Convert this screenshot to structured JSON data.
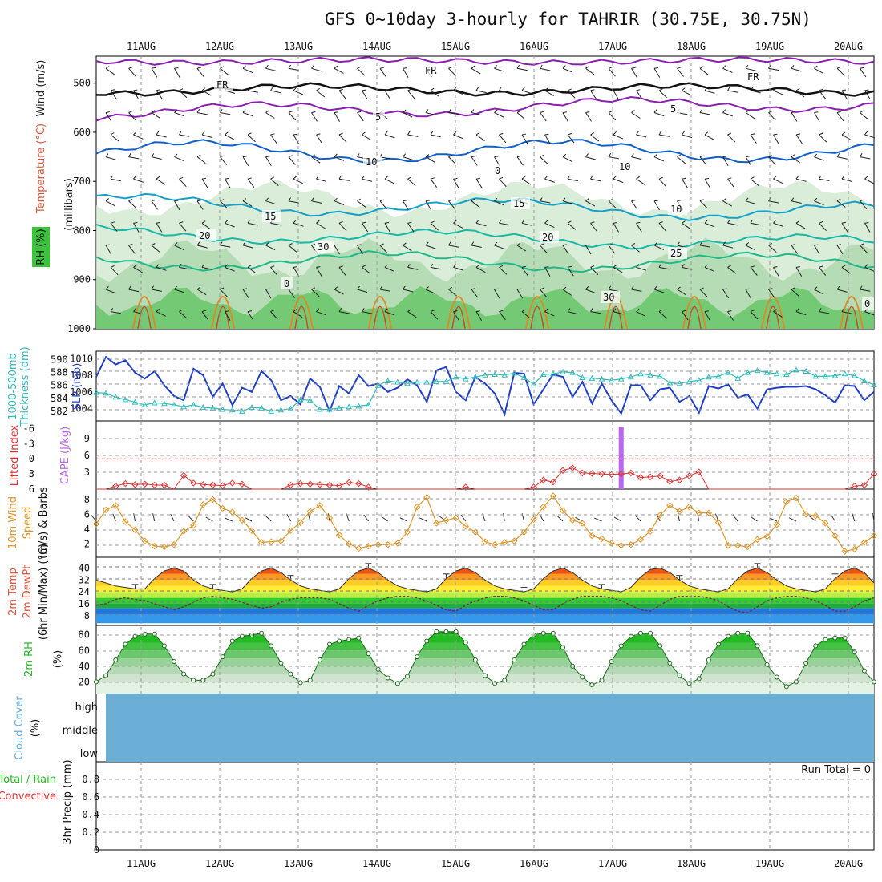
{
  "title": "GFS 0~10day 3-hourly for TAHRIR (30.75E, 30.75N)",
  "dates": [
    "11AUG",
    "12AUG",
    "13AUG",
    "14AUG",
    "15AUG",
    "16AUG",
    "17AUG",
    "18AUG",
    "19AUG",
    "20AUG"
  ],
  "run_total": "Run Total = 0",
  "colors": {
    "slp": "#1f3fc8",
    "thickness": "#33bbbb",
    "lifted": "#e03030",
    "cape": "#bb66ee",
    "wind": "#e0962a",
    "rh_green": "#22bb22",
    "temp_purple": "#8a1fb0",
    "temp_blue": "#1060cc",
    "temp_cyan": "#14a0c8",
    "temp_teal": "#18b8a8",
    "temp_orange": "#e08820",
    "cloud": "#6baed6"
  },
  "panels": {
    "profile": {
      "label_wind": "Wind (m/s)",
      "label_temp": "Temperature (°C)",
      "label_rh": "RH (%)",
      "label_axis": "(millibars)",
      "ylim": [
        1000,
        450
      ],
      "ticks": [
        "500",
        "600",
        "700",
        "800",
        "900",
        "1000"
      ],
      "contour_labels": [
        "FR",
        "FR",
        "FR",
        "5",
        "5",
        "10",
        "15",
        "15",
        "20",
        "20",
        "25",
        "0",
        "0",
        "0",
        "10",
        "10",
        "30",
        "30"
      ]
    },
    "slp": {
      "label_thick": "1000-500mb",
      "label_thick2": "Thickness (dm)",
      "label_slp": "SLP (mb)",
      "ticks_left": [
        "590",
        "588",
        "586",
        "584",
        "582"
      ],
      "ticks_right": [
        "1010",
        "1008",
        "1006",
        "1004"
      ]
    },
    "cape": {
      "label_li": "Lifted Index",
      "label_cape": "CAPE (J/kg)",
      "ticks_left": [
        "-6",
        "-3",
        "0",
        "3",
        "6"
      ],
      "ticks_right": [
        "9",
        "6",
        "3"
      ]
    },
    "wind": {
      "label1": "10m Wind",
      "label2": "Speed",
      "label3": "(m/s) & Barbs",
      "ticks": [
        "8",
        "6",
        "4",
        "2"
      ]
    },
    "temp": {
      "label1": "2m Temp",
      "label2": "2m DewPt",
      "label3": "(6hr Min/Max) (°C)",
      "ticks": [
        "40",
        "32",
        "24",
        "16",
        "8"
      ]
    },
    "rh": {
      "label1": "2m RH",
      "label2": "(%)",
      "ticks": [
        "80",
        "60",
        "40",
        "20"
      ]
    },
    "cloud": {
      "label": "Cloud Cover",
      "unit": "(%)",
      "levels": [
        "high",
        "middle",
        "low"
      ]
    },
    "precip": {
      "label_total": "Total / Rain",
      "label_conv": "Convective",
      "label_axis": "3hr Precip (mm)",
      "ticks": [
        "0.8",
        "0.6",
        "0.4",
        "0.2",
        "0"
      ]
    }
  },
  "chart_data": [
    {
      "type": "line",
      "title": "1000-500mb Thickness (dm) / SLP (mb)",
      "series": [
        {
          "name": "SLP (mb)",
          "values": [
            1007.8,
            1010.2,
            1009.3,
            1009.8,
            1008.3,
            1007.6,
            1008.5,
            1006.8,
            1005.5,
            1005.0,
            1008.8,
            1008.0,
            1005.4,
            1007.0,
            1004.4,
            1006.5,
            1006.0,
            1008.5,
            1007.4,
            1005.0,
            1005.5,
            1004.5,
            1007.6,
            1006.6,
            1003.7,
            1006.7,
            1005.8,
            1008.0,
            1006.7,
            1007.0,
            1006.0,
            1006.5,
            1007.5,
            1006.8,
            1004.8,
            1008.6,
            1009.0,
            1006.0,
            1005.0,
            1007.8,
            1007.0,
            1005.8,
            1003.3,
            1008.3,
            1008.2,
            1004.5,
            1006.3,
            1008.1,
            1007.8,
            1005.4,
            1007.2,
            1004.6,
            1007.0,
            1005.0,
            1003.4,
            1006.8,
            1006.8,
            1005.0,
            1006.3,
            1006.5,
            1004.8,
            1005.5,
            1003.5,
            1006.7,
            1006.4,
            1006.9,
            1005.3,
            1005.7,
            1004.0,
            1006.3,
            1006.5,
            1006.6,
            1006.6,
            1006.7,
            1006.3,
            1005.6,
            1004.7,
            1006.8,
            1006.7,
            1005.0,
            1006.0
          ]
        },
        {
          "name": "Thickness (dm)",
          "values": [
            584.9,
            584.8,
            584.2,
            583.8,
            583.4,
            583.0,
            583.3,
            583.2,
            583.0,
            582.7,
            583.0,
            582.6,
            582.5,
            582.3,
            582.2,
            582.0,
            582.6,
            582.5,
            582.0,
            582.2,
            582.4,
            583.8,
            583.7,
            582.3,
            582.3,
            582.5,
            582.7,
            582.8,
            583.0,
            586.0,
            586.7,
            586.5,
            586.3,
            586.5,
            586.5,
            586.6,
            586.6,
            587.3,
            587.0,
            587.3,
            587.6,
            587.7,
            587.6,
            587.9,
            587.2,
            586.2,
            587.7,
            587.8,
            588.1,
            588.0,
            587.2,
            587.1,
            587.0,
            586.8,
            587.0,
            587.3,
            587.8,
            587.6,
            587.4,
            586.4,
            586.3,
            586.6,
            586.8,
            587.3,
            587.4,
            588.0,
            587.1,
            588.0,
            588.3,
            588.0,
            587.8,
            587.7,
            588.4,
            588.2,
            587.4,
            587.4,
            587.5,
            587.8,
            587.5,
            586.7,
            586.1
          ]
        }
      ]
    },
    {
      "type": "line",
      "title": "Lifted Index / CAPE (J/kg)",
      "series": [
        {
          "name": "Lifted Index",
          "values": [
            6,
            6,
            5.4,
            4.9,
            5.1,
            5.0,
            5.2,
            5.2,
            6,
            3.3,
            4.8,
            5.1,
            5.2,
            5.3,
            4.8,
            5.0,
            6,
            6,
            6,
            6,
            5.2,
            4.9,
            5.0,
            5.1,
            5.2,
            5.3,
            4.7,
            4.9,
            5.6,
            6,
            6,
            6,
            6,
            6,
            6,
            6,
            6,
            6,
            5.6,
            6,
            6,
            6,
            6,
            6,
            6,
            5.6,
            4.2,
            4.6,
            2.3,
            1.8,
            2.8,
            2.9,
            3.0,
            3.1,
            3.0,
            2.8,
            3.7,
            3.6,
            3.4,
            4.5,
            4.2,
            3.4,
            2.6,
            6,
            6,
            6,
            6,
            6,
            6,
            6,
            6,
            6,
            6,
            6,
            6,
            6,
            6,
            6,
            5.4,
            5.2,
            3.0
          ]
        },
        {
          "name": "CAPE (J/kg)",
          "values": [
            0,
            0,
            0,
            0,
            0,
            0,
            0,
            0,
            0,
            0,
            0,
            0,
            0,
            0,
            0,
            0,
            0,
            0,
            0,
            0,
            0,
            0,
            0,
            0,
            0,
            0,
            0,
            0,
            0,
            0,
            0,
            0,
            0,
            0,
            0,
            0,
            0,
            0,
            0,
            0,
            0,
            0,
            0,
            0,
            0,
            0,
            0,
            0,
            0,
            0,
            0,
            0,
            0,
            0,
            12,
            0,
            0,
            0,
            0,
            0,
            0,
            0,
            0,
            0,
            0,
            0,
            0,
            0,
            0,
            0,
            0,
            0,
            0,
            0,
            0,
            0,
            0,
            0,
            0,
            0,
            0
          ]
        }
      ]
    },
    {
      "type": "line",
      "title": "10m Wind Speed (m/s)",
      "series": [
        {
          "name": "Speed (m/s)",
          "values": [
            4.7,
            6.6,
            7.2,
            5.0,
            3.9,
            2.4,
            1.7,
            1.6,
            1.9,
            3.7,
            4.5,
            7.3,
            8.0,
            6.8,
            6.3,
            5.2,
            3.8,
            2.2,
            2.3,
            2.4,
            3.8,
            4.9,
            6.4,
            7.2,
            5.5,
            3.2,
            2.0,
            1.4,
            1.7,
            1.9,
            1.9,
            2.1,
            3.6,
            7.0,
            8.3,
            4.8,
            5.2,
            5.5,
            4.4,
            3.6,
            2.3,
            1.9,
            2.2,
            2.4,
            3.6,
            5.3,
            7.0,
            8.5,
            6.5,
            5.2,
            4.8,
            3.1,
            2.7,
            2.1,
            1.8,
            1.9,
            2.6,
            3.7,
            5.9,
            7.2,
            6.4,
            7.0,
            6.2,
            6.2,
            4.9,
            1.8,
            1.8,
            1.6,
            2.6,
            3.0,
            4.6,
            7.7,
            8.2,
            6.0,
            5.8,
            4.8,
            3.1,
            1.0,
            1.3,
            2.2,
            3.1
          ]
        }
      ]
    },
    {
      "type": "area",
      "title": "2m Temp / 2m DewPt (°C)",
      "series": [
        {
          "name": "2m Temp",
          "values": [
            32,
            30,
            28,
            27,
            26,
            26,
            33,
            38,
            40,
            38,
            32,
            28,
            26,
            25,
            24,
            26,
            33,
            38,
            40,
            37,
            32,
            28,
            26,
            25,
            24,
            26,
            33,
            38,
            40,
            37,
            32,
            28,
            26,
            25,
            24,
            26,
            33,
            38,
            40,
            37,
            32,
            28,
            26,
            25,
            24,
            26,
            33,
            38,
            40,
            37,
            32,
            28,
            26,
            25,
            24,
            27,
            34,
            39,
            40,
            37,
            32,
            28,
            26,
            25,
            24,
            26,
            33,
            38,
            40,
            37,
            32,
            28,
            26,
            25,
            24,
            26,
            33,
            38,
            40,
            37,
            30
          ]
        },
        {
          "name": "2m DewPt",
          "values": [
            15,
            16,
            19,
            20,
            19,
            18,
            16,
            14,
            12,
            14,
            17,
            20,
            21,
            20,
            19,
            17,
            15,
            13,
            14,
            17,
            19,
            20,
            20,
            20,
            19,
            16,
            13,
            11,
            15,
            18,
            20,
            21,
            21,
            20,
            18,
            15,
            12,
            11,
            15,
            18,
            20,
            21,
            21,
            20,
            18,
            15,
            12,
            12,
            16,
            19,
            21,
            21,
            21,
            20,
            18,
            15,
            12,
            11,
            15,
            19,
            21,
            21,
            21,
            20,
            18,
            14,
            11,
            10,
            14,
            18,
            20,
            21,
            21,
            20,
            18,
            15,
            11,
            11,
            14,
            18,
            20
          ]
        }
      ]
    },
    {
      "type": "area",
      "title": "2m RH (%)",
      "series": [
        {
          "name": "2m RH",
          "values": [
            20,
            28,
            48,
            68,
            78,
            81,
            81,
            66,
            46,
            30,
            22,
            22,
            30,
            52,
            72,
            78,
            80,
            82,
            66,
            44,
            30,
            19,
            22,
            48,
            68,
            72,
            74,
            76,
            56,
            36,
            25,
            18,
            27,
            52,
            72,
            84,
            84,
            84,
            70,
            48,
            28,
            18,
            22,
            48,
            68,
            80,
            82,
            82,
            64,
            40,
            26,
            16,
            22,
            46,
            66,
            78,
            82,
            82,
            66,
            44,
            28,
            18,
            24,
            48,
            68,
            78,
            82,
            82,
            66,
            42,
            26,
            14,
            20,
            44,
            66,
            74,
            76,
            76,
            58,
            34,
            20
          ]
        }
      ]
    },
    {
      "type": "bar",
      "title": "3hr Precip (mm)",
      "series": [
        {
          "name": "Total / Rain",
          "values": [
            0,
            0,
            0,
            0,
            0,
            0,
            0,
            0,
            0,
            0
          ]
        },
        {
          "name": "Convective",
          "values": [
            0,
            0,
            0,
            0,
            0,
            0,
            0,
            0,
            0,
            0
          ]
        }
      ],
      "ylim": [
        0,
        1
      ]
    }
  ]
}
